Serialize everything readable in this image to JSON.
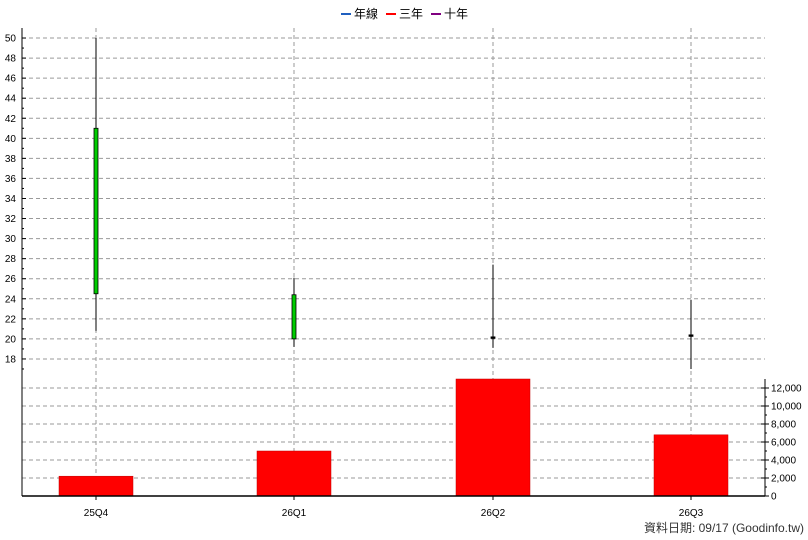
{
  "legend": [
    {
      "label": "年線",
      "color": "#1f5fbf"
    },
    {
      "label": "三年",
      "color": "#ff0000"
    },
    {
      "label": "十年",
      "color": "#800080"
    }
  ],
  "credit": "資料日期: 09/17  (Goodinfo.tw)",
  "chart_data": {
    "type": "candlestick+bar",
    "categories": [
      "25Q4",
      "26Q1",
      "26Q2",
      "26Q3"
    ],
    "price": {
      "ylim": [
        16,
        51
      ],
      "ticks": [
        18,
        20,
        22,
        24,
        26,
        28,
        30,
        32,
        34,
        36,
        38,
        40,
        42,
        44,
        46,
        48,
        50
      ],
      "candles": [
        {
          "open": 24.5,
          "high": 50.0,
          "low": 20.8,
          "close": 41.0,
          "color": "#00cc00"
        },
        {
          "open": 20.0,
          "high": 26.1,
          "low": 19.2,
          "close": 24.4,
          "color": "#00cc00"
        },
        {
          "open": 20.1,
          "high": 27.4,
          "low": 19.1,
          "close": 20.2,
          "color": "#000000"
        },
        {
          "open": 20.3,
          "high": 23.9,
          "low": 17.0,
          "close": 20.4,
          "color": "#000000"
        }
      ]
    },
    "volume": {
      "ylim": [
        0,
        13000
      ],
      "ticks": [
        0,
        2000,
        4000,
        6000,
        8000,
        10000,
        12000
      ],
      "tick_labels": [
        "0",
        "2,000",
        "4,000",
        "6,000",
        "8,000",
        "10,000",
        "12,000"
      ],
      "values": [
        2200,
        5000,
        13000,
        6800
      ],
      "color": "#ff0000"
    },
    "grid": true
  }
}
